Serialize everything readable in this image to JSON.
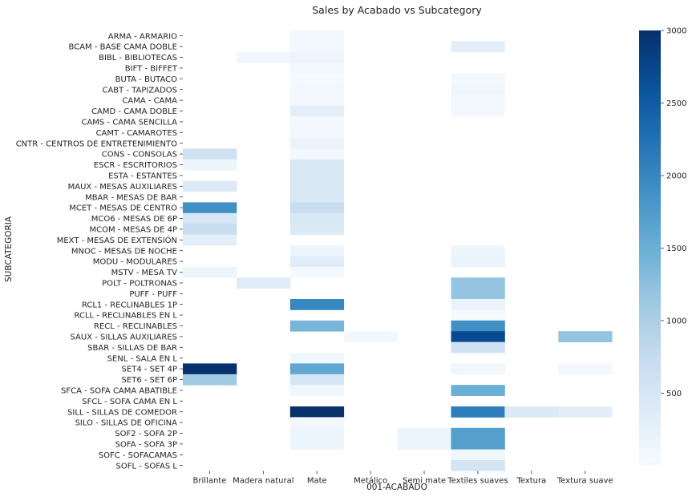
{
  "chart_data": {
    "type": "heatmap",
    "title": "Sales by Acabado vs Subcategory",
    "xlabel": "001-ACABADO",
    "ylabel": "SUBCATEGORIA",
    "x_categories": [
      "Brillante",
      "Madera natural",
      "Mate",
      "Metálico",
      "Semi mate",
      "Textiles suaves",
      "Textura",
      "Textura suave"
    ],
    "y_categories": [
      "ARMA - ARMARIO",
      "BCAM - BASE CAMA DOBLE",
      "BIBL - BIBLIOTECAS",
      "BIFT - BIFFET",
      "BUTA - BUTACO",
      "CABT - TAPIZADOS",
      "CAMA - CAMA",
      "CAMD - CAMA DOBLE",
      "CAMS - CAMA SENCILLA",
      "CAMT - CAMAROTES",
      "CNTR - CENTROS DE ENTRETENIMIENTO",
      "CONS - CONSOLAS",
      "ESCR - ESCRITORIOS",
      "ESTA - ESTANTES",
      "MAUX - MESAS AUXILIARES",
      "MBAR - MESAS DE BAR",
      "MCET - MESAS DE CENTRO",
      "MCO6 - MESAS DE 6P",
      "MCOM - MESAS DE 4P",
      "MEXT - MESAS DE EXTENSIÓN",
      "MNOC - MESAS DE NOCHE",
      "MODU - MODULARES",
      "MSTV - MESA TV",
      "POLT - POLTRONAS",
      "PUFF - PUFF",
      "RCL1 - RECLINABLES 1P",
      "RCLL - RECLINABLES EN L",
      "RECL - RECLINABLES",
      "SAUX - SILLAS AUXILIARES",
      "SBAR - SILLAS DE BAR",
      "SENL - SALA EN L",
      "SET4 - SET 4P",
      "SET6 - SET 6P",
      "SFCA - SOFA CAMA ABATIBLE",
      "SFCL - SOFA CAMA EN L",
      "SILL - SILLAS DE COMEDOR",
      "SILO - SILLAS DE OFICINA",
      "SOF2 - SOFA 2P",
      "SOFA - SOFA 3P",
      "SOFC - SOFACAMAS",
      "SOFL - SOFAS L"
    ],
    "values": [
      [
        null,
        null,
        60,
        null,
        null,
        null,
        null,
        null
      ],
      [
        null,
        null,
        60,
        null,
        null,
        300,
        null,
        null
      ],
      [
        null,
        100,
        160,
        null,
        null,
        null,
        null,
        null
      ],
      [
        null,
        null,
        100,
        null,
        null,
        null,
        null,
        null
      ],
      [
        null,
        null,
        50,
        null,
        null,
        80,
        null,
        null
      ],
      [
        null,
        null,
        60,
        null,
        null,
        120,
        null,
        null
      ],
      [
        null,
        null,
        60,
        null,
        null,
        80,
        null,
        null
      ],
      [
        null,
        null,
        300,
        null,
        null,
        80,
        null,
        null
      ],
      [
        null,
        null,
        60,
        null,
        null,
        null,
        null,
        null
      ],
      [
        null,
        null,
        90,
        null,
        null,
        null,
        null,
        null
      ],
      [
        null,
        null,
        180,
        null,
        null,
        null,
        null,
        null
      ],
      [
        600,
        null,
        60,
        null,
        null,
        null,
        null,
        null
      ],
      [
        150,
        null,
        450,
        null,
        null,
        null,
        null,
        null
      ],
      [
        null,
        null,
        450,
        null,
        null,
        null,
        null,
        null
      ],
      [
        400,
        null,
        450,
        null,
        null,
        null,
        null,
        null
      ],
      [
        null,
        null,
        450,
        null,
        null,
        null,
        null,
        null
      ],
      [
        1900,
        null,
        700,
        null,
        null,
        null,
        null,
        null
      ],
      [
        500,
        null,
        450,
        null,
        null,
        null,
        null,
        null
      ],
      [
        700,
        null,
        400,
        null,
        null,
        null,
        null,
        null
      ],
      [
        300,
        null,
        null,
        null,
        null,
        null,
        null,
        null
      ],
      [
        null,
        null,
        150,
        null,
        null,
        150,
        null,
        null
      ],
      [
        null,
        null,
        350,
        null,
        null,
        200,
        null,
        null
      ],
      [
        150,
        null,
        50,
        null,
        null,
        null,
        null,
        null
      ],
      [
        null,
        350,
        null,
        null,
        null,
        1200,
        null,
        null
      ],
      [
        null,
        null,
        null,
        null,
        null,
        1200,
        null,
        null
      ],
      [
        null,
        null,
        2000,
        null,
        null,
        200,
        null,
        null
      ],
      [
        null,
        null,
        null,
        null,
        null,
        50,
        null,
        null
      ],
      [
        null,
        null,
        1400,
        null,
        null,
        1900,
        null,
        null
      ],
      [
        null,
        null,
        null,
        80,
        null,
        2700,
        null,
        1200
      ],
      [
        null,
        null,
        null,
        null,
        null,
        600,
        null,
        null
      ],
      [
        null,
        null,
        100,
        null,
        null,
        null,
        null,
        null
      ],
      [
        3000,
        null,
        1600,
        null,
        null,
        120,
        null,
        80
      ],
      [
        1100,
        null,
        500,
        null,
        null,
        null,
        null,
        null
      ],
      [
        null,
        null,
        120,
        null,
        null,
        1500,
        null,
        null
      ],
      [
        null,
        null,
        null,
        null,
        null,
        null,
        null,
        null
      ],
      [
        null,
        null,
        3000,
        null,
        null,
        2100,
        400,
        300
      ],
      [
        null,
        null,
        60,
        null,
        null,
        null,
        null,
        null
      ],
      [
        null,
        null,
        150,
        null,
        150,
        1700,
        null,
        null
      ],
      [
        null,
        null,
        150,
        null,
        150,
        1700,
        null,
        null
      ],
      [
        null,
        null,
        null,
        null,
        null,
        100,
        null,
        null
      ],
      [
        null,
        null,
        null,
        null,
        null,
        550,
        null,
        null
      ]
    ],
    "colorbar": {
      "min": 0,
      "max": 3000,
      "ticks": [
        500,
        1000,
        1500,
        2000,
        2500,
        3000
      ],
      "colormap": "Blues"
    }
  }
}
